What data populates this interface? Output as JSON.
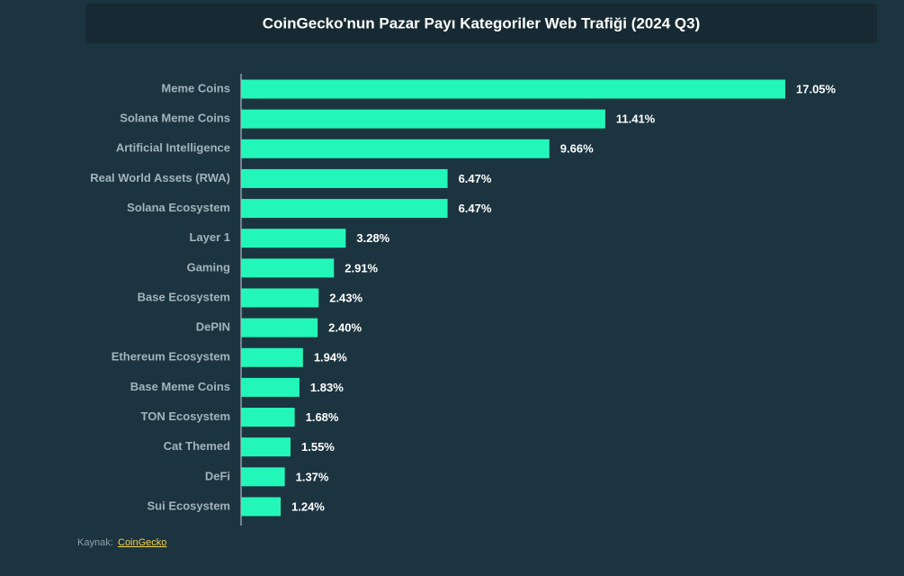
{
  "chart_data": {
    "type": "hbar",
    "title": "CoinGecko'nun Pazar Payı Kategoriler Web Trafiği (2024 Q3)",
    "categories": [
      "Meme Coins",
      "Solana Meme Coins",
      "Artificial Intelligence",
      "Real World Assets (RWA)",
      "Solana Ecosystem",
      "Layer 1",
      "Gaming",
      "Base Ecosystem",
      "DePIN",
      "Ethereum Ecosystem",
      "Base Meme Coins",
      "TON Ecosystem",
      "Cat Themed",
      "DeFi",
      "Sui Ecosystem"
    ],
    "values": [
      17.05,
      11.41,
      9.66,
      6.47,
      6.47,
      3.28,
      2.91,
      2.43,
      2.4,
      1.94,
      1.83,
      1.68,
      1.55,
      1.37,
      1.24
    ],
    "value_labels": [
      "17.05%",
      "11.41%",
      "9.66%",
      "6.47%",
      "6.47%",
      "3.28%",
      "2.91%",
      "2.43%",
      "2.40%",
      "1.94%",
      "1.83%",
      "1.68%",
      "1.55%",
      "1.37%",
      "1.24%"
    ],
    "color": "#22f7b9",
    "source_label": "Kaynak:",
    "source_link": "CoinGecko"
  }
}
